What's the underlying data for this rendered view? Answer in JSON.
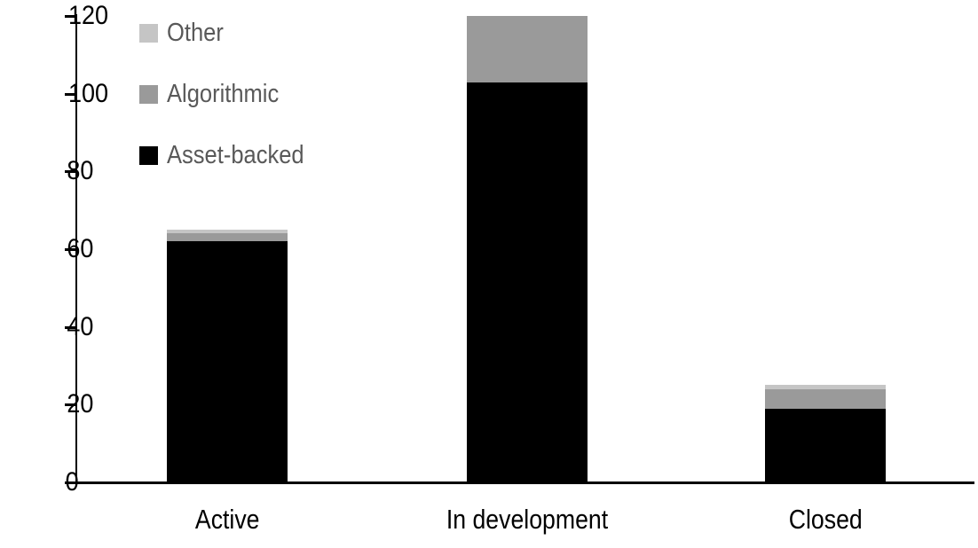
{
  "chart_data": {
    "type": "bar",
    "subtype": "stacked",
    "title": "",
    "xlabel": "",
    "ylabel": "",
    "categories": [
      "Active",
      "In development",
      "Closed"
    ],
    "series": [
      {
        "name": "Asset-backed",
        "color": "#000000",
        "values": [
          62,
          103,
          19
        ]
      },
      {
        "name": "Algorithmic",
        "color": "#9a9a9a",
        "values": [
          2,
          17,
          5
        ]
      },
      {
        "name": "Other",
        "color": "#c5c5c5",
        "values": [
          1,
          0,
          1
        ]
      }
    ],
    "stack_order_bottom_to_top": [
      "Asset-backed",
      "Algorithmic",
      "Other"
    ],
    "totals": [
      65,
      120,
      25
    ],
    "ylim": [
      0,
      120
    ],
    "y_ticks": [
      0,
      20,
      40,
      60,
      80,
      100,
      120
    ],
    "grid": false,
    "legend_position": "inside-top-left",
    "legend_order_top_to_bottom": [
      "Other",
      "Algorithmic",
      "Asset-backed"
    ]
  },
  "legend": {
    "items": [
      {
        "label": "Other",
        "color": "#c5c5c5"
      },
      {
        "label": "Algorithmic",
        "color": "#9a9a9a"
      },
      {
        "label": "Asset-backed",
        "color": "#000000"
      }
    ]
  },
  "colors": {
    "axis": "#000000",
    "axis_text": "#000000",
    "legend_text": "#595959",
    "background": "#ffffff"
  }
}
